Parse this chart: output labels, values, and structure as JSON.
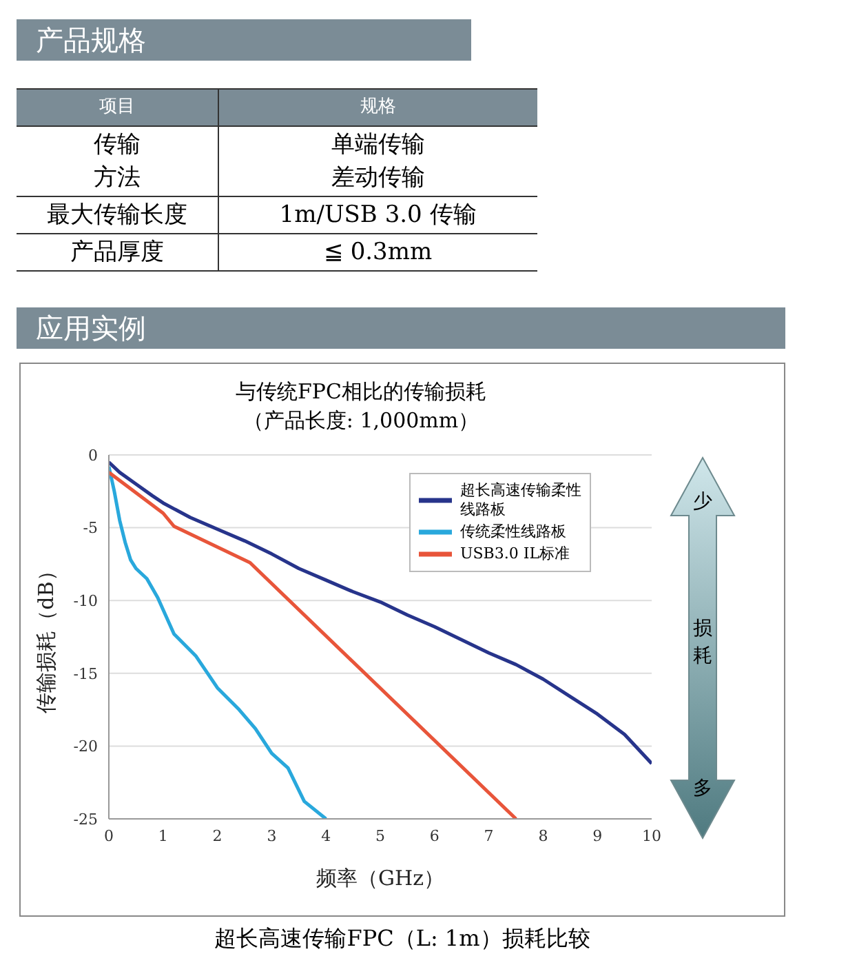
{
  "chart_data": [
    {
      "type": "other",
      "title": "产品规格",
      "annotations": [
        "项目",
        "规格",
        "传输方法",
        "单端传输差动传输",
        "最大传输长度",
        "1m/USB 3.0 传输",
        "产品厚度",
        "≦ 0.3mm"
      ]
    },
    {
      "type": "line",
      "title": "与传统FPC相比的传输损耗",
      "subtitle": "（产品长度: 1,000mm）",
      "xlabel": "频率（GHz）",
      "ylabel": "传输损耗（dB）",
      "annotations": [
        "应用实例",
        "超长高速传输FPC（L: 1m）损耗比较",
        "少",
        "损耗",
        "多"
      ],
      "xlim": [
        0,
        10
      ],
      "xticks": [
        0,
        1,
        2,
        3,
        4,
        5,
        6,
        7,
        8,
        9,
        10
      ],
      "ylim": [
        -25,
        0
      ],
      "yticks": [
        -25,
        -20,
        -15,
        -10,
        -5,
        0
      ],
      "grid": "y",
      "legend": "top right",
      "marker": "none",
      "line_style": "solid",
      "series": [
        {
          "name": "超长高速传输柔性线路板",
          "color": "#27348b",
          "x": [
            0,
            0.2,
            0.5,
            0.8,
            1,
            1.5,
            2,
            2.5,
            3,
            3.5,
            4,
            4.5,
            5,
            5.5,
            6,
            6.5,
            7,
            7.5,
            8,
            8.5,
            9,
            9.5,
            10
          ],
          "values": [
            -0.5,
            -1.2,
            -2,
            -2.8,
            -3.3,
            -4.3,
            -5.1,
            -5.9,
            -6.8,
            -7.8,
            -8.6,
            -9.4,
            -10.1,
            -11,
            -11.8,
            -12.7,
            -13.6,
            -14.4,
            -15.4,
            -16.6,
            -17.8,
            -19.2,
            -21.2
          ]
        },
        {
          "name": "传统柔性线路板",
          "color": "#29a8dc",
          "x": [
            0,
            0.1,
            0.2,
            0.3,
            0.4,
            0.5,
            0.7,
            0.9,
            1.2,
            1.6,
            2,
            2.4,
            2.7,
            3,
            3.3,
            3.6,
            4
          ],
          "values": [
            -0.8,
            -2.5,
            -4.5,
            -6,
            -7.2,
            -7.8,
            -8.5,
            -9.8,
            -12.3,
            -13.8,
            -16,
            -17.5,
            -18.8,
            -20.5,
            -21.5,
            -23.8,
            -25
          ]
        },
        {
          "name": "USB3.0 IL标准",
          "color": "#e8553a",
          "x": [
            0,
            1,
            1.2,
            2.6,
            7.5
          ],
          "values": [
            -1.2,
            -4,
            -4.9,
            -7.4,
            -25
          ]
        }
      ]
    }
  ]
}
